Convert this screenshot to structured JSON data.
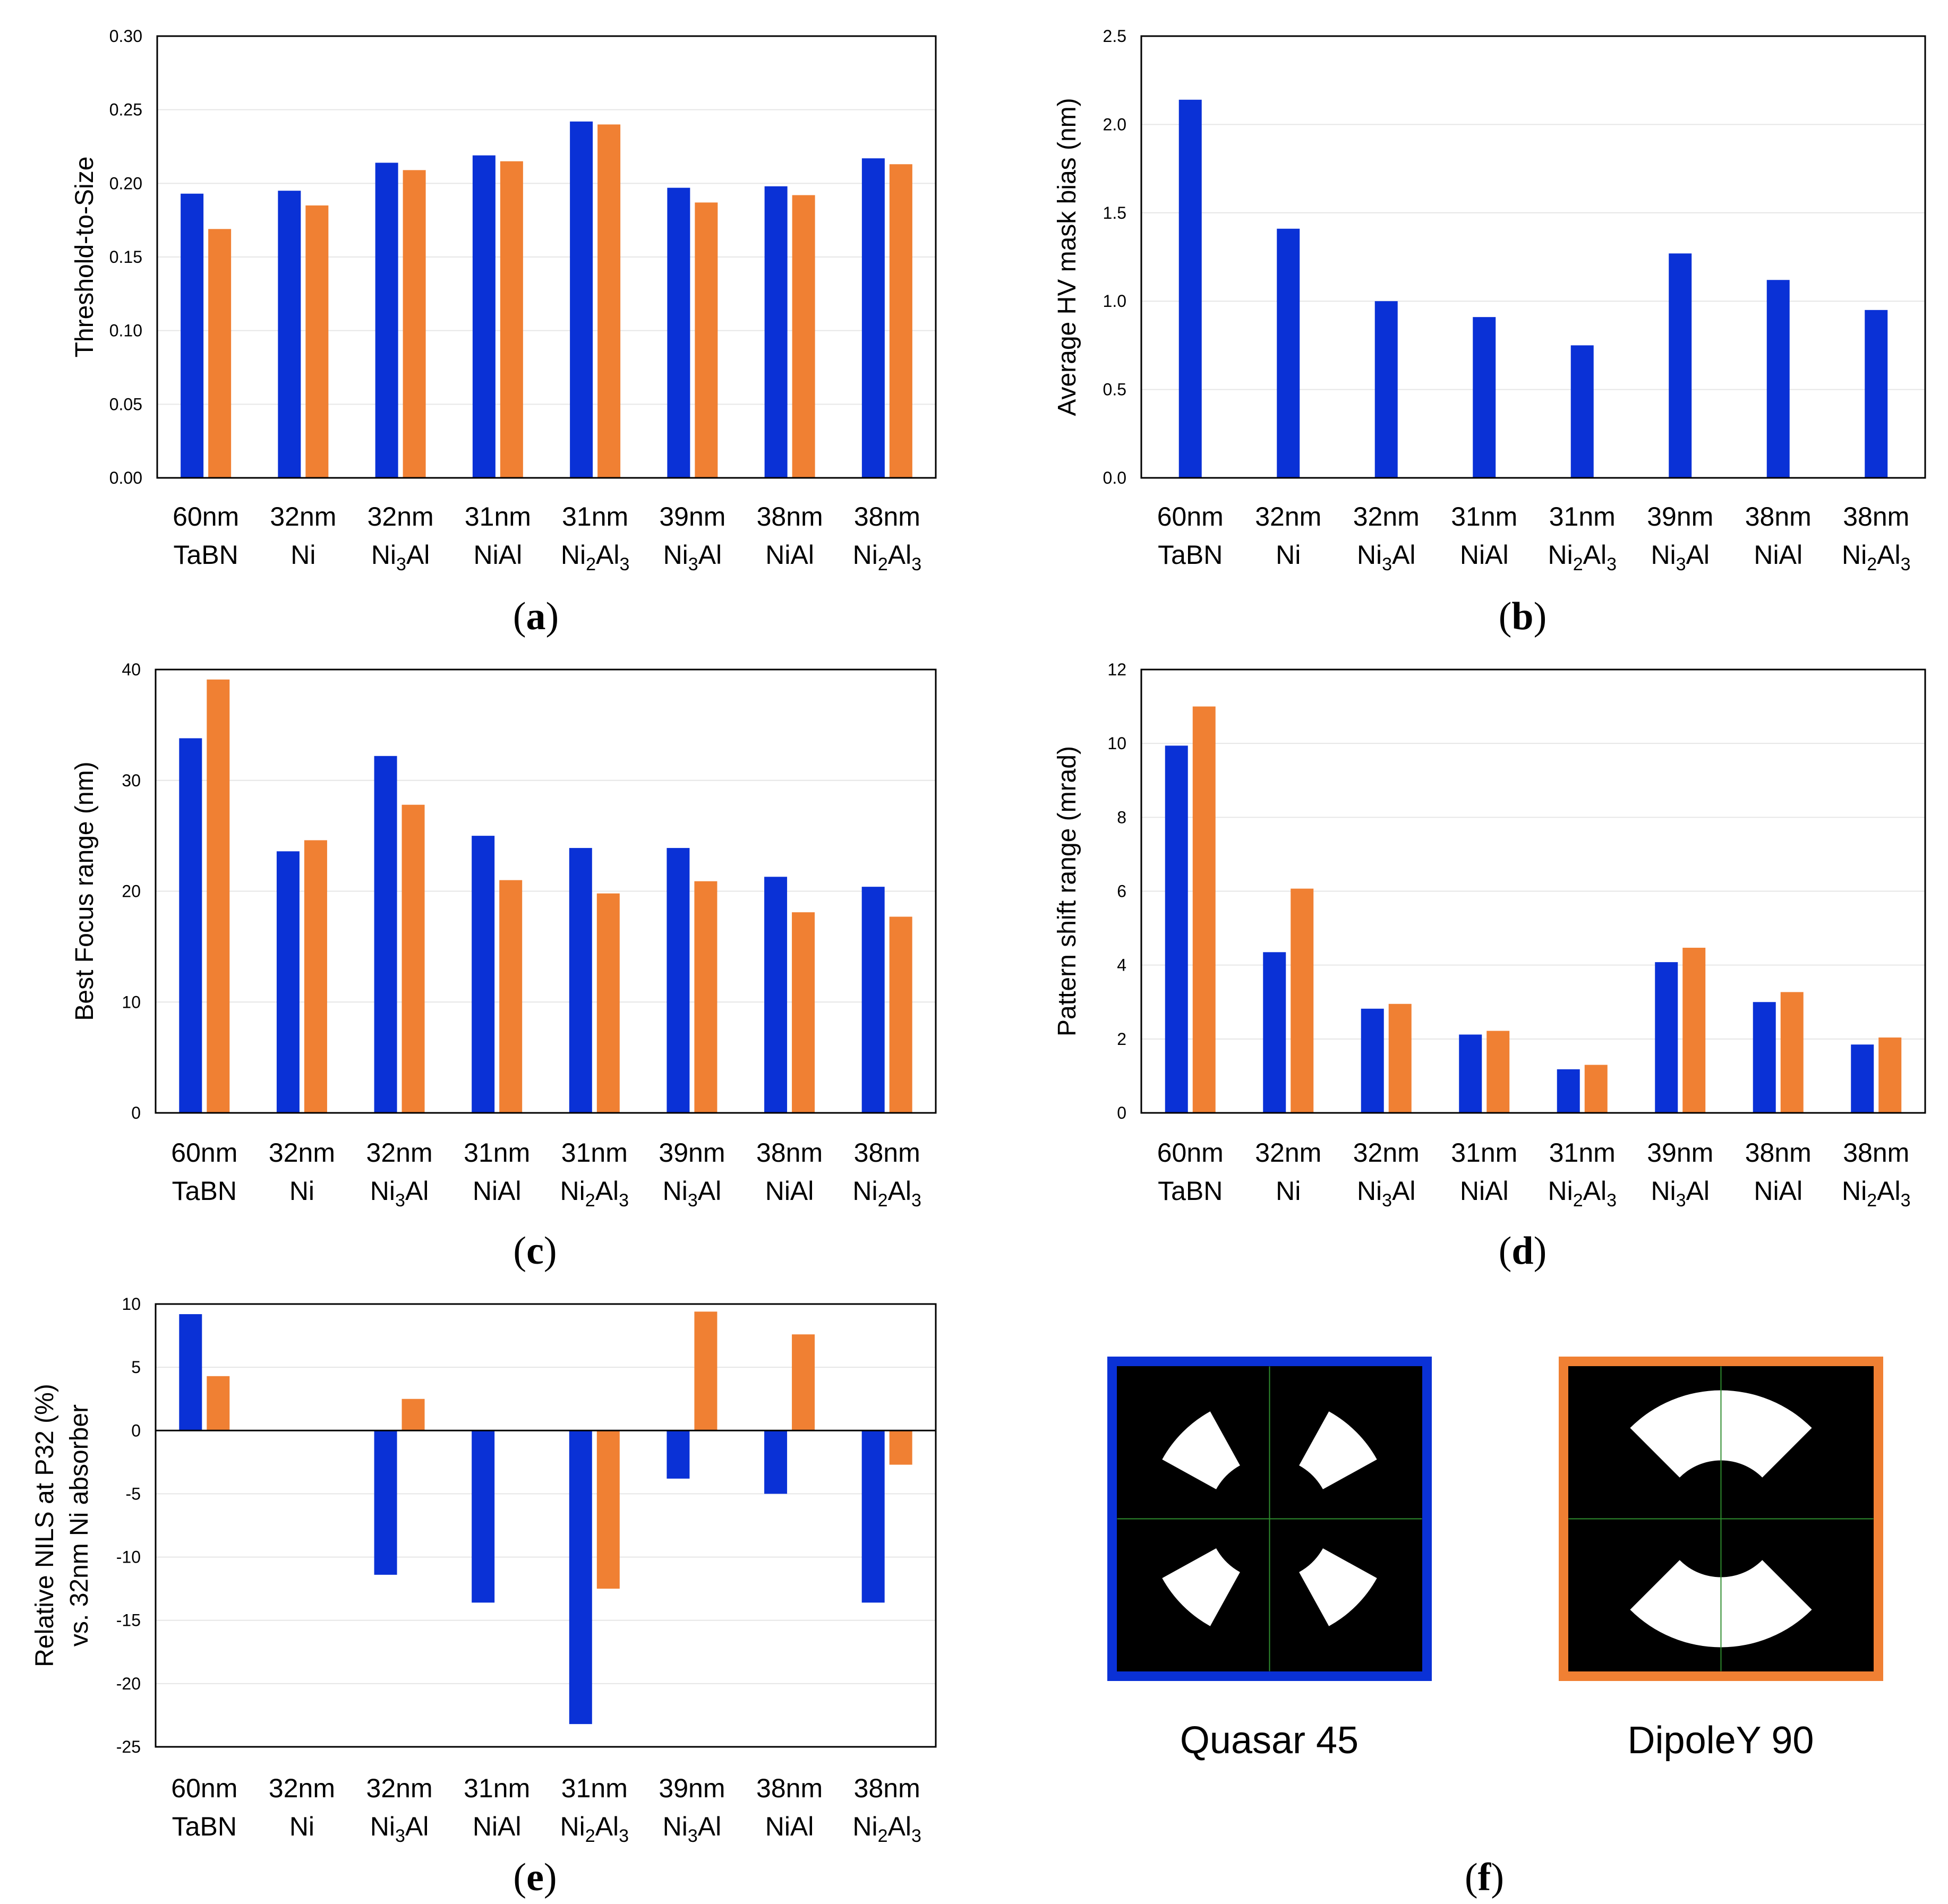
{
  "colors": {
    "series_1": "#0a31d6",
    "series_2": "#f08033",
    "pupil_bg": "#000000",
    "pupil_open": "#ffffff",
    "crosshair": "#2e8b2e"
  },
  "categories": [
    {
      "size": "60nm",
      "material": "TaBN",
      "base": "TaBN",
      "subs": []
    },
    {
      "size": "32nm",
      "material": "Ni",
      "base": "Ni",
      "subs": []
    },
    {
      "size": "32nm",
      "material": "Ni3Al",
      "base": "Ni",
      "subs": [
        [
          "3",
          "Al"
        ]
      ]
    },
    {
      "size": "31nm",
      "material": "NiAl",
      "base": "NiAl",
      "subs": []
    },
    {
      "size": "31nm",
      "material": "Ni2Al3",
      "base": "Ni",
      "subs": [
        [
          "2",
          "Al"
        ],
        [
          "3",
          ""
        ]
      ]
    },
    {
      "size": "39nm",
      "material": "Ni3Al",
      "base": "Ni",
      "subs": [
        [
          "3",
          "Al"
        ]
      ]
    },
    {
      "size": "38nm",
      "material": "NiAl",
      "base": "NiAl",
      "subs": []
    },
    {
      "size": "38nm",
      "material": "Ni2Al3",
      "base": "Ni",
      "subs": [
        [
          "2",
          "Al"
        ],
        [
          "3",
          ""
        ]
      ]
    }
  ],
  "chart_data": [
    {
      "id": "a",
      "panel_label": "a",
      "type": "bar",
      "ylabel": "Threshold-to-Size",
      "ylim": [
        0,
        0.3
      ],
      "yticks": [
        "0.00",
        "0.05",
        "0.10",
        "0.15",
        "0.20",
        "0.25",
        "0.30"
      ],
      "ytick_values": [
        0,
        0.05,
        0.1,
        0.15,
        0.2,
        0.25,
        0.3
      ],
      "series": [
        {
          "name": "Quasar 45",
          "values": [
            0.193,
            0.195,
            0.214,
            0.219,
            0.242,
            0.197,
            0.198,
            0.217
          ]
        },
        {
          "name": "DipoleY 90",
          "values": [
            0.169,
            0.185,
            0.209,
            0.215,
            0.24,
            0.187,
            0.192,
            0.213
          ]
        }
      ]
    },
    {
      "id": "b",
      "panel_label": "b",
      "type": "bar",
      "ylabel": "Average HV mask bias (nm)",
      "ylim": [
        0,
        2.5
      ],
      "yticks": [
        "0.0",
        "0.5",
        "1.0",
        "1.5",
        "2.0",
        "2.5"
      ],
      "ytick_values": [
        0,
        0.5,
        1.0,
        1.5,
        2.0,
        2.5
      ],
      "series": [
        {
          "name": "HV mask bias",
          "values": [
            2.14,
            1.41,
            1.0,
            0.91,
            0.75,
            1.27,
            1.12,
            0.95
          ]
        }
      ]
    },
    {
      "id": "c",
      "panel_label": "c",
      "type": "bar",
      "ylabel": "Best Focus range (nm)",
      "ylim": [
        0,
        40
      ],
      "yticks": [
        "0",
        "10",
        "20",
        "30",
        "40"
      ],
      "ytick_values": [
        0,
        10,
        20,
        30,
        40
      ],
      "series": [
        {
          "name": "Quasar 45",
          "values": [
            33.8,
            23.6,
            32.2,
            25.0,
            23.9,
            23.9,
            21.3,
            20.4
          ]
        },
        {
          "name": "DipoleY 90",
          "values": [
            39.1,
            24.6,
            27.8,
            21.0,
            19.8,
            20.9,
            18.1,
            17.7
          ]
        }
      ]
    },
    {
      "id": "d",
      "panel_label": "d",
      "type": "bar",
      "ylabel": "Pattern shift range (mrad)",
      "ylim": [
        0,
        12
      ],
      "yticks": [
        "0",
        "2",
        "4",
        "6",
        "8",
        "10",
        "12"
      ],
      "ytick_values": [
        0,
        2,
        4,
        6,
        8,
        10,
        12
      ],
      "series": [
        {
          "name": "Quasar 45",
          "values": [
            9.94,
            4.35,
            2.82,
            2.12,
            1.18,
            4.08,
            3.0,
            1.85
          ]
        },
        {
          "name": "DipoleY 90",
          "values": [
            11.0,
            6.07,
            2.95,
            2.22,
            1.3,
            4.47,
            3.27,
            2.04
          ]
        }
      ]
    },
    {
      "id": "e",
      "panel_label": "e",
      "type": "bar",
      "ylabel_lines": [
        "Relative NILS at P32 (%)",
        "vs. 32nm Ni absorber"
      ],
      "ylim": [
        -25,
        10
      ],
      "yticks": [
        "-25",
        "-20",
        "-15",
        "-10",
        "-5",
        "0",
        "5",
        "10"
      ],
      "ytick_values": [
        -25,
        -20,
        -15,
        -10,
        -5,
        0,
        5,
        10
      ],
      "series": [
        {
          "name": "Quasar 45",
          "values": [
            9.2,
            0,
            -11.4,
            -13.6,
            -23.2,
            -3.8,
            -5.0,
            -13.6
          ]
        },
        {
          "name": "DipoleY 90",
          "values": [
            4.3,
            0,
            2.5,
            0,
            -12.5,
            9.4,
            7.6,
            -2.7
          ]
        }
      ]
    }
  ],
  "panel_f": {
    "panel_label": "f",
    "pupils": [
      {
        "caption": "Quasar 45",
        "icon": "quasar-45-pupil-icon"
      },
      {
        "caption": "DipoleY 90",
        "icon": "dipole-y-90-pupil-icon"
      }
    ]
  }
}
